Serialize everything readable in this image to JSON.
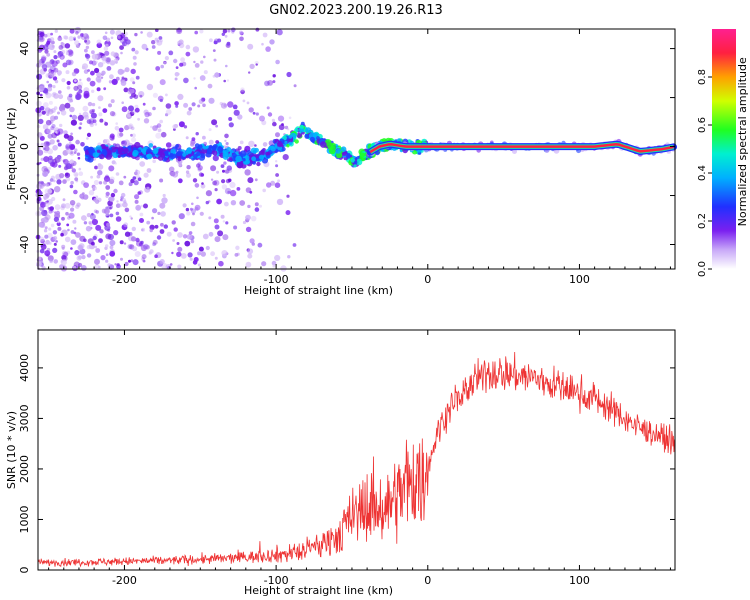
{
  "figure": {
    "title": "GN02.2023.200.19.26.R13"
  },
  "chart_data": [
    {
      "type": "heatmap",
      "title": "GN02.2023.200.19.26.R13",
      "xlabel": "Height of straight line (km)",
      "ylabel": "Frequency (Hz)",
      "xlim": [
        -257,
        163
      ],
      "ylim": [
        -50,
        48
      ],
      "x_ticks": [
        -200,
        -100,
        0,
        100
      ],
      "y_ticks": [
        -40,
        -20,
        0,
        20,
        40
      ],
      "colorbar": {
        "label": "Normalized spectral amplitude",
        "range": [
          0,
          1
        ],
        "ticks": [
          0.0,
          0.2,
          0.4,
          0.6,
          0.8
        ]
      },
      "frequency_track": [
        {
          "x": -225,
          "y": -3
        },
        {
          "x": -212,
          "y": -2
        },
        {
          "x": -190,
          "y": -2
        },
        {
          "x": -170,
          "y": -3
        },
        {
          "x": -155,
          "y": -3
        },
        {
          "x": -140,
          "y": -1
        },
        {
          "x": -125,
          "y": -5
        },
        {
          "x": -110,
          "y": -4
        },
        {
          "x": -100,
          "y": 0
        },
        {
          "x": -90,
          "y": 3
        },
        {
          "x": -82,
          "y": 8
        },
        {
          "x": -75,
          "y": 4
        },
        {
          "x": -65,
          "y": 0
        },
        {
          "x": -55,
          "y": -3
        },
        {
          "x": -48,
          "y": -6
        },
        {
          "x": -40,
          "y": -3
        },
        {
          "x": -32,
          "y": 0
        },
        {
          "x": -25,
          "y": 1
        },
        {
          "x": -15,
          "y": 0
        },
        {
          "x": 0,
          "y": 0
        },
        {
          "x": 50,
          "y": 0
        },
        {
          "x": 110,
          "y": 0
        },
        {
          "x": 125,
          "y": 1
        },
        {
          "x": 140,
          "y": -2
        },
        {
          "x": 155,
          "y": -1
        },
        {
          "x": 163,
          "y": 0
        }
      ]
    },
    {
      "type": "line",
      "xlabel": "Height of straight line (km)",
      "ylabel": "SNR (10 * v/v)",
      "xlim": [
        -257,
        163
      ],
      "ylim": [
        0,
        4750
      ],
      "x_ticks": [
        -200,
        -100,
        0,
        100
      ],
      "y_ticks": [
        0,
        1000,
        2000,
        3000,
        4000
      ],
      "series": [
        {
          "color": "#ee3333",
          "x": [
            -257,
            -240,
            -220,
            -200,
            -180,
            -160,
            -140,
            -120,
            -100,
            -85,
            -70,
            -60,
            -50,
            -40,
            -30,
            -20,
            -10,
            -5,
            0,
            5,
            10,
            20,
            30,
            40,
            50,
            60,
            70,
            80,
            90,
            100,
            110,
            120,
            130,
            140,
            150,
            163
          ],
          "y": [
            150,
            150,
            160,
            170,
            180,
            200,
            220,
            250,
            300,
            350,
            500,
            700,
            1000,
            1300,
            1200,
            1500,
            1800,
            1700,
            2000,
            2600,
            3000,
            3400,
            3700,
            3900,
            3900,
            3850,
            3800,
            3700,
            3600,
            3500,
            3400,
            3200,
            3000,
            2800,
            2700,
            2500
          ]
        }
      ]
    }
  ]
}
